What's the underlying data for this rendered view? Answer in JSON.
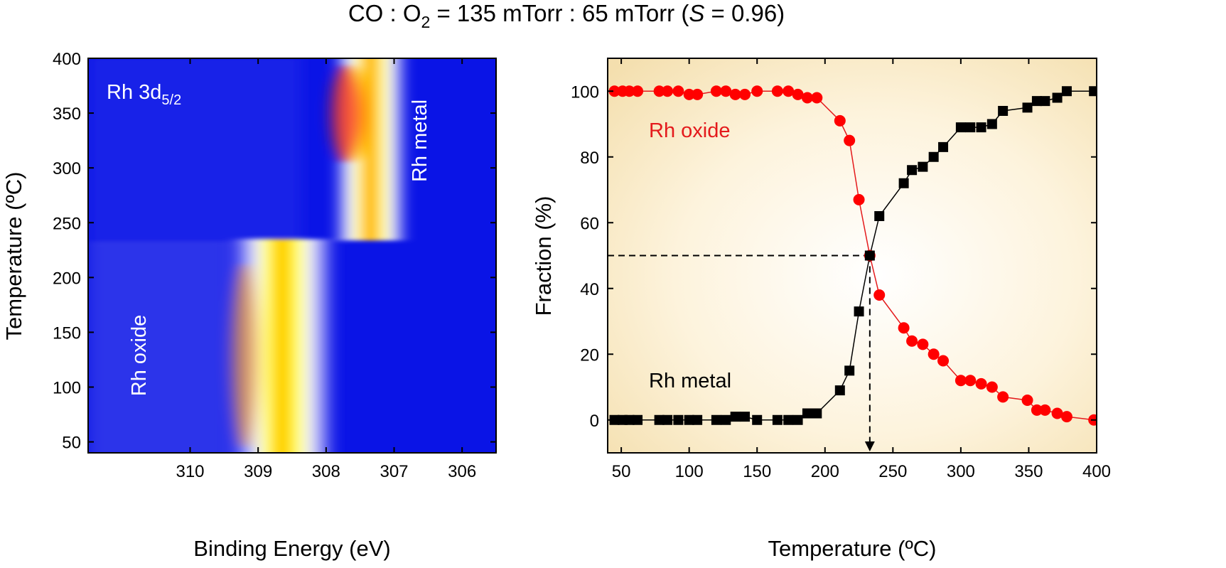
{
  "title": {
    "prefix": "CO : O",
    "sub": "2",
    "middle": " = 135 mTorr : 65 mTorr (",
    "italic": "S",
    "suffix": " = 0.96)"
  },
  "chart_data": [
    {
      "type": "heatmap",
      "xlabel": "Binding Energy (eV)",
      "ylabel": "Temperature (ºC)",
      "xlim": [
        311.5,
        305.5
      ],
      "ylim": [
        40,
        400
      ],
      "x_ticks": [
        "310",
        "309",
        "308",
        "307",
        "306"
      ],
      "y_ticks": [
        "50",
        "100",
        "150",
        "200",
        "250",
        "300",
        "350",
        "400"
      ],
      "colormap": [
        "#0000e8",
        "#ffffff",
        "#ffff00",
        "#ff0000"
      ],
      "annotations": {
        "spectrum_main": "Rh 3d",
        "spectrum_sub": "5/2",
        "metal": "Rh metal",
        "oxide": "Rh oxide"
      },
      "bands": [
        {
          "label": "Rh oxide",
          "center_eV": 308.65,
          "t_from": 40,
          "t_to": 235
        },
        {
          "label": "Rh metal",
          "center_eV": 307.35,
          "t_from": 235,
          "t_to": 400
        }
      ]
    },
    {
      "type": "line",
      "xlabel": "Temperature (ºC)",
      "ylabel": "Fraction (%)",
      "xlim": [
        40,
        400
      ],
      "ylim": [
        -10,
        110
      ],
      "x_ticks": [
        "50",
        "100",
        "150",
        "200",
        "250",
        "300",
        "350",
        "400"
      ],
      "y_ticks": [
        "0",
        "20",
        "40",
        "60",
        "80",
        "100"
      ],
      "crossover": {
        "x": 233,
        "y": 50
      },
      "series": [
        {
          "name": "Rh oxide",
          "marker": "circle",
          "color": "#ff0000",
          "points": [
            [
              45,
              100
            ],
            [
              51,
              100
            ],
            [
              56,
              100
            ],
            [
              62,
              100
            ],
            [
              78,
              100
            ],
            [
              84,
              100
            ],
            [
              92,
              100
            ],
            [
              100,
              99
            ],
            [
              106,
              99
            ],
            [
              120,
              100
            ],
            [
              127,
              100
            ],
            [
              134,
              99
            ],
            [
              141,
              99
            ],
            [
              150,
              100
            ],
            [
              165,
              100
            ],
            [
              173,
              100
            ],
            [
              180,
              99
            ],
            [
              187,
              98
            ],
            [
              194,
              98
            ],
            [
              211,
              91
            ],
            [
              218,
              85
            ],
            [
              225,
              67
            ],
            [
              233,
              50
            ],
            [
              240,
              38
            ],
            [
              258,
              28
            ],
            [
              264,
              24
            ],
            [
              272,
              23
            ],
            [
              280,
              20
            ],
            [
              287,
              18
            ],
            [
              300,
              12
            ],
            [
              307,
              12
            ],
            [
              315,
              11
            ],
            [
              323,
              10
            ],
            [
              331,
              7
            ],
            [
              349,
              6
            ],
            [
              356,
              3
            ],
            [
              362,
              3
            ],
            [
              371,
              2
            ],
            [
              378,
              1
            ],
            [
              398,
              0
            ]
          ]
        },
        {
          "name": "Rh metal",
          "marker": "square",
          "color": "#000000",
          "points": [
            [
              45,
              0
            ],
            [
              51,
              0
            ],
            [
              56,
              0
            ],
            [
              62,
              0
            ],
            [
              78,
              0
            ],
            [
              84,
              0
            ],
            [
              92,
              0
            ],
            [
              100,
              0
            ],
            [
              106,
              0
            ],
            [
              120,
              0
            ],
            [
              127,
              0
            ],
            [
              134,
              1
            ],
            [
              141,
              1
            ],
            [
              150,
              0
            ],
            [
              165,
              0
            ],
            [
              173,
              0
            ],
            [
              180,
              0
            ],
            [
              187,
              2
            ],
            [
              194,
              2
            ],
            [
              211,
              9
            ],
            [
              218,
              15
            ],
            [
              225,
              33
            ],
            [
              233,
              50
            ],
            [
              240,
              62
            ],
            [
              258,
              72
            ],
            [
              264,
              76
            ],
            [
              272,
              77
            ],
            [
              280,
              80
            ],
            [
              287,
              83
            ],
            [
              300,
              89
            ],
            [
              307,
              89
            ],
            [
              315,
              89
            ],
            [
              323,
              90
            ],
            [
              331,
              94
            ],
            [
              349,
              95
            ],
            [
              356,
              97
            ],
            [
              362,
              97
            ],
            [
              371,
              98
            ],
            [
              378,
              100
            ],
            [
              398,
              100
            ]
          ]
        }
      ]
    }
  ]
}
